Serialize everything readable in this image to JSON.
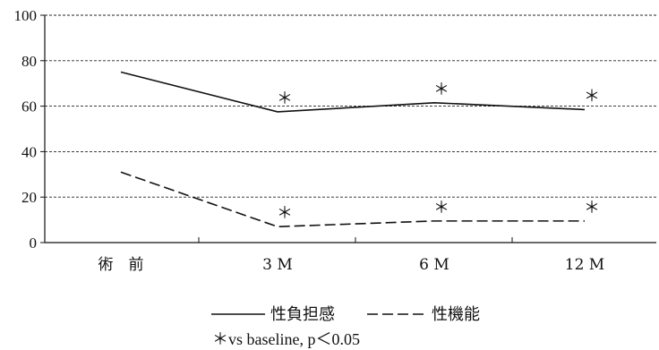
{
  "chart_data": {
    "type": "line",
    "categories": [
      "術　前",
      "3 M",
      "6 M",
      "12 M"
    ],
    "ylim": [
      0,
      100
    ],
    "yticks": [
      0,
      20,
      40,
      60,
      80,
      100
    ],
    "grid": true,
    "series": [
      {
        "name": "性負担感",
        "style": "solid",
        "values": [
          75,
          57.5,
          61.5,
          58.5
        ],
        "significant": [
          false,
          true,
          true,
          true
        ]
      },
      {
        "name": "性機能",
        "style": "dashed",
        "values": [
          31,
          7,
          9.5,
          9.5
        ],
        "significant": [
          false,
          true,
          true,
          true
        ]
      }
    ],
    "significance_marker": "＊",
    "footnote": "＊vs baseline,  p＜0.05",
    "legend_placement": "bottom"
  }
}
